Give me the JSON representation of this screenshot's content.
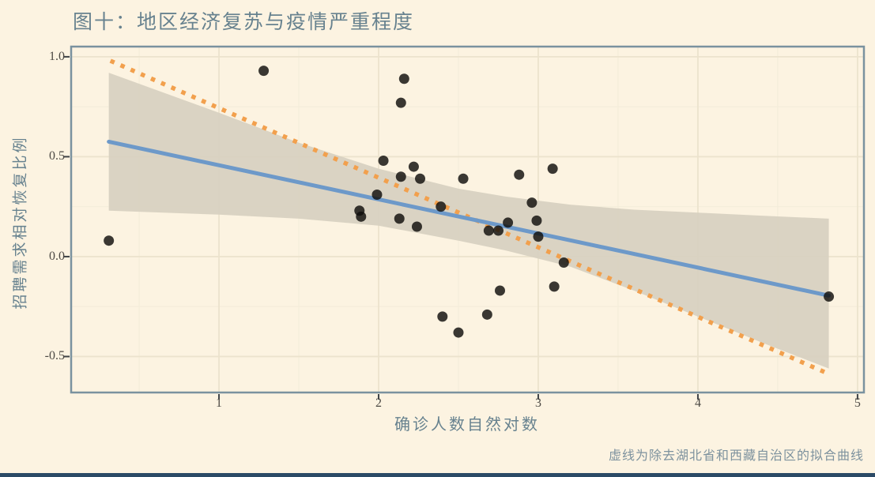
{
  "figure": {
    "title": "图十：地区经济复苏与疫情严重程度",
    "x_axis_label": "确诊人数自然对数",
    "y_axis_label": "招聘需求相对恢复比例",
    "caption": "虚线为除去湖北省和西藏自治区的拟合曲线"
  },
  "colors": {
    "background": "#fcf3e1",
    "panel_border": "#7a929f",
    "grid_major": "#ece3cd",
    "grid_minor": "#f4edda",
    "confidence_band": "#d7d0c0",
    "point": "#0f0d0b",
    "solid_fit_line": "#6d99c9",
    "dotted_fit_line": "#f2a04d",
    "title_text": "#67828f",
    "tick_text": "#4d4a45",
    "caption_text": "#7d929e",
    "bottom_bar": "#2b4a66"
  },
  "chart_data": {
    "type": "scatter",
    "title": "图十：地区经济复苏与疫情严重程度",
    "xlabel": "确诊人数自然对数",
    "ylabel": "招聘需求相对恢复比例",
    "caption": "虚线为除去湖北省和西藏自治区的拟合曲线",
    "grid": true,
    "legend_position": "none",
    "xlim": [
      0.074,
      5.04
    ],
    "ylim": [
      -0.68,
      1.051
    ],
    "x_ticks": [
      "1",
      "2",
      "3",
      "4",
      "5"
    ],
    "x_tick_values": [
      1,
      2,
      3,
      4,
      5
    ],
    "y_ticks": [
      "1.0",
      "0.5",
      "0.0",
      "-0.5"
    ],
    "y_tick_values": [
      1.0,
      0.5,
      0.0,
      -0.5
    ],
    "x_minor_ticks": [
      0.5,
      1.5,
      2.5,
      3.5,
      4.5
    ],
    "y_minor_ticks": [
      0.75,
      0.25,
      -0.25
    ],
    "points": [
      [
        0.31,
        0.08
      ],
      [
        1.28,
        0.93
      ],
      [
        2.16,
        0.89
      ],
      [
        2.14,
        0.77
      ],
      [
        2.03,
        0.48
      ],
      [
        2.22,
        0.45
      ],
      [
        2.14,
        0.4
      ],
      [
        2.26,
        0.39
      ],
      [
        2.53,
        0.39
      ],
      [
        1.99,
        0.31
      ],
      [
        1.88,
        0.23
      ],
      [
        1.89,
        0.2
      ],
      [
        2.13,
        0.19
      ],
      [
        2.24,
        0.15
      ],
      [
        2.39,
        0.25
      ],
      [
        2.88,
        0.41
      ],
      [
        3.09,
        0.44
      ],
      [
        2.96,
        0.27
      ],
      [
        2.99,
        0.18
      ],
      [
        2.81,
        0.17
      ],
      [
        2.69,
        0.13
      ],
      [
        2.75,
        0.13
      ],
      [
        3.0,
        0.1
      ],
      [
        3.16,
        -0.03
      ],
      [
        2.76,
        -0.17
      ],
      [
        3.1,
        -0.15
      ],
      [
        2.4,
        -0.3
      ],
      [
        2.68,
        -0.29
      ],
      [
        2.5,
        -0.38
      ],
      [
        4.82,
        -0.2
      ]
    ],
    "fit_line_solid": {
      "style": "solid",
      "x": [
        0.31,
        4.82
      ],
      "y": [
        0.575,
        -0.195
      ]
    },
    "fit_line_dotted": {
      "style": "dotted",
      "x": [
        0.32,
        4.8
      ],
      "y": [
        0.98,
        -0.58
      ]
    },
    "confidence_band": {
      "x": [
        0.31,
        1.0,
        1.5,
        2.0,
        2.5,
        2.8,
        3.2,
        3.6,
        4.0,
        4.4,
        4.82
      ],
      "upper": [
        0.92,
        0.72,
        0.57,
        0.44,
        0.34,
        0.3,
        0.26,
        0.235,
        0.22,
        0.205,
        0.19
      ],
      "lower": [
        0.23,
        0.21,
        0.19,
        0.155,
        0.08,
        0.03,
        -0.05,
        -0.17,
        -0.3,
        -0.43,
        -0.56
      ]
    }
  }
}
